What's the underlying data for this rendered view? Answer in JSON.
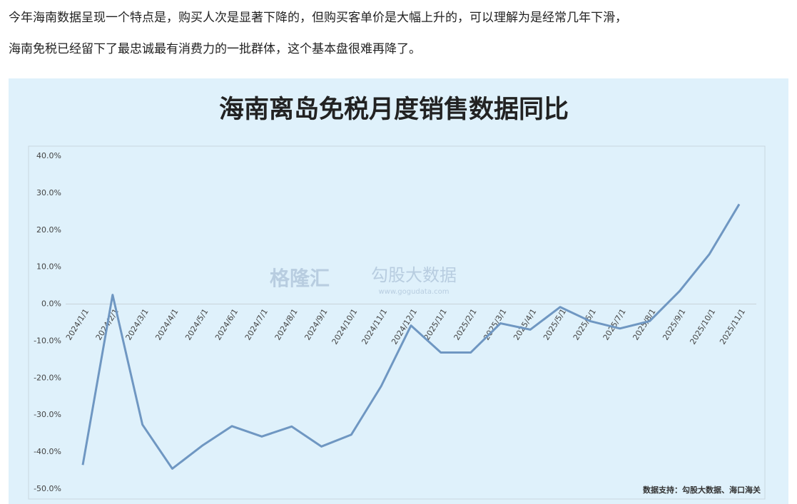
{
  "article": {
    "paragraph": [
      "今年海南数据呈现一个特点是，购买人次是显著下降的，但购买客单价是大幅上升的，可以理解为是经常几年下滑，",
      "海南免税已经留下了最忠诚最有消费力的一批群体，这个基本盘很难再降了。"
    ]
  },
  "chart_data": {
    "type": "line",
    "title": "海南离岛免税月度销售数据同比",
    "categories": [
      "2024/1/1",
      "2024/2/1",
      "2024/3/1",
      "2024/4/1",
      "2024/5/1",
      "2024/6/1",
      "2024/7/1",
      "2024/8/1",
      "2024/9/1",
      "2024/10/1",
      "2024/11/1",
      "2024/12/1",
      "2025/1/1",
      "2025/2/1",
      "2025/3/1",
      "2025/4/1",
      "2025/5/1",
      "2025/6/1",
      "2025/7/1",
      "2025/8/1",
      "2025/9/1",
      "2025/10/1",
      "2025/11/1"
    ],
    "values": [
      -43.5,
      2.5,
      -32.6,
      -44.5,
      -38.3,
      -33.0,
      -35.8,
      -33.1,
      -38.5,
      -35.3,
      -22.2,
      -5.8,
      -13.1,
      -13.1,
      -5.2,
      -6.9,
      -0.8,
      -4.6,
      -6.6,
      -4.6,
      3.5,
      13.5,
      27.0
    ],
    "color": "#6f97c2",
    "ylim": [
      -50,
      40
    ],
    "yticks": [
      {
        "value": -50,
        "label": "-50.0%"
      },
      {
        "value": -40,
        "label": "-40.0%"
      },
      {
        "value": -30,
        "label": "-30.0%"
      },
      {
        "value": -20,
        "label": "-20.0%"
      },
      {
        "value": -10,
        "label": "-10.0%"
      },
      {
        "value": 0,
        "label": "0.0%"
      },
      {
        "value": 10,
        "label": "10.0%"
      },
      {
        "value": 20,
        "label": "20.0%"
      },
      {
        "value": 30,
        "label": "30.0%"
      },
      {
        "value": 40,
        "label": "40.0%"
      }
    ],
    "grid": false,
    "watermark": [
      "格隆汇",
      "勾股大数据",
      "www.gogudata.com"
    ],
    "source": "数据支持：勾股大数据、海口海关"
  }
}
